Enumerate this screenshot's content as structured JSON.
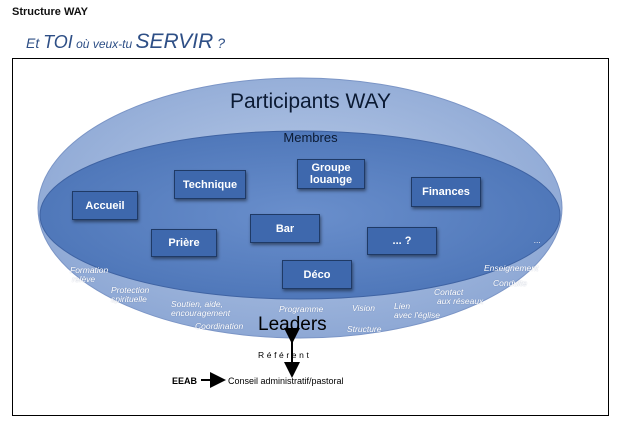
{
  "header": {
    "title": "Structure WAY"
  },
  "tagline": {
    "part1": "Et ",
    "part2": "TOI",
    "part3": " où veux-tu ",
    "part4": "SERVIR",
    "part5": " ?"
  },
  "diagram": {
    "outer_title": "Participants WAY",
    "inner_title": "Membres",
    "boxes": {
      "accueil": "Accueil",
      "technique": "Technique",
      "groupe_louange_l1": "Groupe",
      "groupe_louange_l2": "louange",
      "finances": "Finances",
      "priere": "Prière",
      "bar": "Bar",
      "autre": "... ?",
      "deco": "Déco"
    },
    "ring_labels": {
      "formation_l1": "Formation",
      "formation_l2": "relève",
      "protection_l1": "Protection",
      "protection_l2": "spirituelle",
      "soutien_l1": "Soutien, aide,",
      "soutien_l2": "encouragement",
      "coordination": "Coordination",
      "programme": "Programme",
      "vision": "Vision",
      "lien_l1": "Lien",
      "lien_l2": "avec l'église",
      "structure": "Structure",
      "contact_l1": "Contact",
      "contact_l2": "aux réseaux",
      "enseignement": "Enseignement",
      "conduite": "Conduite",
      "ellipsis": "..."
    },
    "leaders": "Leaders",
    "referent": "Référent",
    "eeab": "EEAB",
    "conseil": "Conseil administratif/pastoral",
    "colors": {
      "outer": "#9db3da",
      "inner": "#5a80c0",
      "box": "#3e68ad",
      "text_dark": "#0b1a33"
    }
  }
}
